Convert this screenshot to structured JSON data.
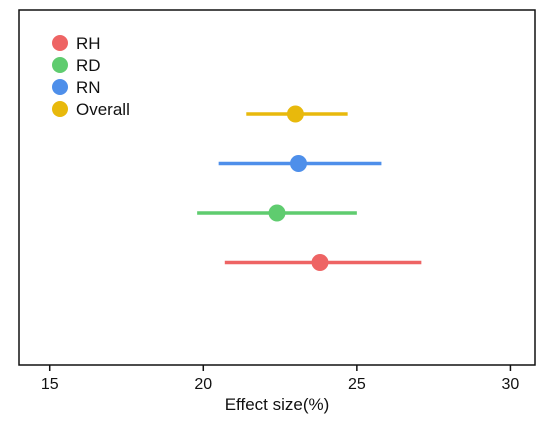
{
  "chart_data": {
    "type": "scatter",
    "subtype": "forest-plot",
    "title": "",
    "xlabel": "Effect size(%)",
    "ylabel": "",
    "xlim": [
      14,
      30.8
    ],
    "x_ticks": [
      15,
      20,
      25,
      30
    ],
    "grid": false,
    "legend_position": "top-left",
    "series": [
      {
        "name": "Overall",
        "color": "#E8B90C",
        "estimate": 23.0,
        "lower": 21.4,
        "upper": 24.7
      },
      {
        "name": "RN",
        "color": "#4E8FEA",
        "estimate": 23.1,
        "lower": 20.5,
        "upper": 25.8
      },
      {
        "name": "RD",
        "color": "#5FCC6F",
        "estimate": 22.4,
        "lower": 19.8,
        "upper": 25.0
      },
      {
        "name": "RH",
        "color": "#EE6464",
        "estimate": 23.8,
        "lower": 20.7,
        "upper": 27.1
      }
    ],
    "legend_order": [
      "RH",
      "RD",
      "RN",
      "Overall"
    ]
  }
}
